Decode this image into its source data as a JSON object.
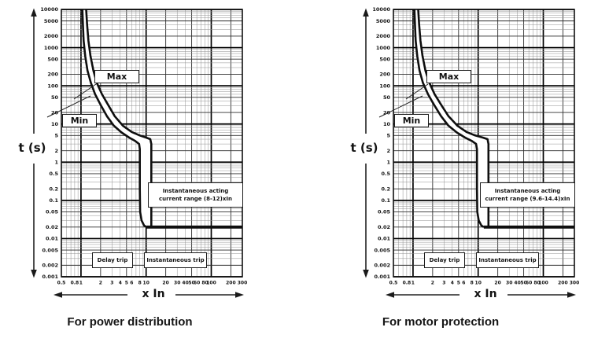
{
  "colors": {
    "background": "#ffffff",
    "grid_major": "#000000",
    "grid_mid": "#2e2e2e",
    "grid_minor": "#909090",
    "curve": "#0f0f0f",
    "band_fill": "#ffffff",
    "text": "#161616"
  },
  "chart_data": [
    {
      "type": "line",
      "title": "For power distribution",
      "xlabel": "x In",
      "ylabel": "t (s)",
      "x_scale": "log",
      "y_scale": "log",
      "xlim": [
        0.5,
        300
      ],
      "ylim": [
        0.001,
        10000
      ],
      "grid": true,
      "x_ticks": [
        0.5,
        0.8,
        1,
        2,
        3,
        4,
        5,
        6,
        8,
        10,
        20,
        30,
        40,
        50,
        60,
        80,
        100,
        200,
        300
      ],
      "y_ticks": [
        10000,
        5000,
        2000,
        1000,
        500,
        200,
        100,
        50,
        20,
        10,
        5,
        2,
        1,
        0.5,
        0.2,
        0.1,
        0.05,
        0.02,
        0.01,
        0.005,
        0.002,
        0.001
      ],
      "instantaneous_range_xIn": [
        8,
        12
      ],
      "delay_trip_time_s": 0.02,
      "series": [
        {
          "name": "Min",
          "points": [
            [
              1.05,
              10000
            ],
            [
              1.07,
              4000
            ],
            [
              1.1,
              1500
            ],
            [
              1.16,
              600
            ],
            [
              1.26,
              250
            ],
            [
              1.42,
              120
            ],
            [
              1.65,
              60
            ],
            [
              2.0,
              32
            ],
            [
              2.5,
              16
            ],
            [
              3.2,
              9
            ],
            [
              4.2,
              6
            ],
            [
              5.5,
              4.4
            ],
            [
              6.8,
              3.6
            ],
            [
              7.8,
              3.0
            ],
            [
              8.0,
              2.2
            ],
            [
              8.0,
              0.2
            ],
            [
              8.1,
              0.05
            ],
            [
              8.5,
              0.03
            ],
            [
              9.3,
              0.022
            ],
            [
              10.2,
              0.02
            ]
          ]
        },
        {
          "name": "Max",
          "points": [
            [
              1.2,
              10000
            ],
            [
              1.24,
              4000
            ],
            [
              1.3,
              1500
            ],
            [
              1.4,
              600
            ],
            [
              1.55,
              250
            ],
            [
              1.75,
              120
            ],
            [
              2.1,
              60
            ],
            [
              2.6,
              32
            ],
            [
              3.3,
              16
            ],
            [
              4.4,
              9
            ],
            [
              6.0,
              6.2
            ],
            [
              8.0,
              5.0
            ],
            [
              10.0,
              4.4
            ],
            [
              11.6,
              4.0
            ],
            [
              12.0,
              3.0
            ],
            [
              12.0,
              0.02
            ]
          ]
        },
        {
          "name": "Instantaneous trip line",
          "points": [
            [
              10.2,
              0.02
            ],
            [
              300,
              0.02
            ]
          ]
        }
      ],
      "labels": {
        "max": "Max",
        "min": "Min",
        "annotation_line1": "Instantaneous acting",
        "annotation_line2": "current range (8-12)xIn",
        "delay_trip": "Delay trip",
        "instantaneous_trip": "Instantaneous trip"
      }
    },
    {
      "type": "line",
      "title": "For motor protection",
      "xlabel": "x In",
      "ylabel": "t (s)",
      "x_scale": "log",
      "y_scale": "log",
      "xlim": [
        0.5,
        300
      ],
      "ylim": [
        0.001,
        10000
      ],
      "grid": true,
      "x_ticks": [
        0.5,
        0.8,
        1,
        2,
        3,
        4,
        5,
        6,
        8,
        10,
        20,
        30,
        40,
        50,
        60,
        80,
        100,
        200,
        300
      ],
      "y_ticks": [
        10000,
        5000,
        2000,
        1000,
        500,
        200,
        100,
        50,
        20,
        10,
        5,
        2,
        1,
        0.5,
        0.2,
        0.1,
        0.05,
        0.02,
        0.01,
        0.005,
        0.002,
        0.001
      ],
      "instantaneous_range_xIn": [
        9.6,
        14.4
      ],
      "delay_trip_time_s": 0.02,
      "series": [
        {
          "name": "Min",
          "points": [
            [
              1.05,
              10000
            ],
            [
              1.07,
              4000
            ],
            [
              1.1,
              1500
            ],
            [
              1.16,
              600
            ],
            [
              1.26,
              250
            ],
            [
              1.42,
              120
            ],
            [
              1.7,
              60
            ],
            [
              2.1,
              32
            ],
            [
              2.7,
              16
            ],
            [
              3.5,
              9
            ],
            [
              4.7,
              6
            ],
            [
              6.3,
              4.4
            ],
            [
              8.0,
              3.6
            ],
            [
              9.3,
              3.0
            ],
            [
              9.6,
              2.2
            ],
            [
              9.6,
              0.2
            ],
            [
              9.7,
              0.05
            ],
            [
              10.2,
              0.03
            ],
            [
              11.2,
              0.022
            ],
            [
              12.2,
              0.02
            ]
          ]
        },
        {
          "name": "Max",
          "points": [
            [
              1.2,
              10000
            ],
            [
              1.24,
              4000
            ],
            [
              1.3,
              1500
            ],
            [
              1.4,
              600
            ],
            [
              1.55,
              250
            ],
            [
              1.78,
              120
            ],
            [
              2.15,
              60
            ],
            [
              2.7,
              32
            ],
            [
              3.5,
              16
            ],
            [
              4.8,
              9
            ],
            [
              6.6,
              6.2
            ],
            [
              9.0,
              5.0
            ],
            [
              11.8,
              4.4
            ],
            [
              13.9,
              4.0
            ],
            [
              14.4,
              3.0
            ],
            [
              14.4,
              0.02
            ]
          ]
        },
        {
          "name": "Instantaneous trip line",
          "points": [
            [
              12.2,
              0.02
            ],
            [
              300,
              0.02
            ]
          ]
        }
      ],
      "labels": {
        "max": "Max",
        "min": "Min",
        "annotation_line1": "Instantaneous acting",
        "annotation_line2": "current range (9.6-14.4)xIn",
        "delay_trip": "Delay trip",
        "instantaneous_trip": "Instantaneous trip"
      }
    }
  ]
}
